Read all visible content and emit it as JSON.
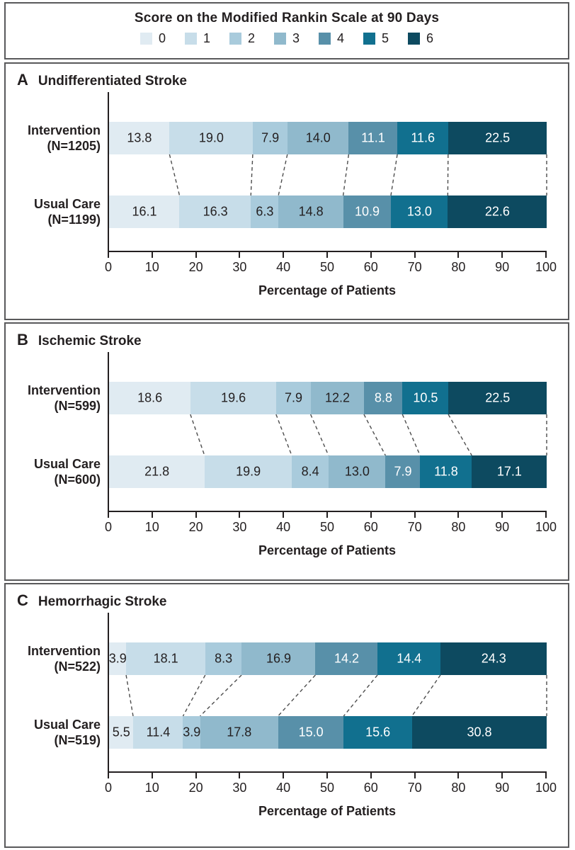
{
  "legend": {
    "title": "Score on the Modified Rankin Scale at 90 Days",
    "items": [
      {
        "label": "0",
        "color": "#e0ebf2"
      },
      {
        "label": "1",
        "color": "#c7dde9"
      },
      {
        "label": "2",
        "color": "#a9cbdc"
      },
      {
        "label": "3",
        "color": "#90b9cc"
      },
      {
        "label": "4",
        "color": "#5890a9"
      },
      {
        "label": "5",
        "color": "#11708f"
      },
      {
        "label": "6",
        "color": "#0d4a60"
      }
    ]
  },
  "chart_data": [
    {
      "type": "bar",
      "orientation": "horizontal-stacked",
      "panel_letter": "A",
      "title": "Undifferentiated Stroke",
      "xlabel": "Percentage of Patients",
      "xlim": [
        0,
        100
      ],
      "xticks": [
        0,
        10,
        20,
        30,
        40,
        50,
        60,
        70,
        80,
        90,
        100
      ],
      "categories": [
        "0",
        "1",
        "2",
        "3",
        "4",
        "5",
        "6"
      ],
      "series": [
        {
          "name": "Intervention",
          "n_label": "(N=1205)",
          "values": [
            13.8,
            19.0,
            7.9,
            14.0,
            11.1,
            11.6,
            22.5
          ]
        },
        {
          "name": "Usual Care",
          "n_label": "(N=1199)",
          "values": [
            16.1,
            16.3,
            6.3,
            14.8,
            10.9,
            13.0,
            22.6
          ]
        }
      ]
    },
    {
      "type": "bar",
      "orientation": "horizontal-stacked",
      "panel_letter": "B",
      "title": "Ischemic Stroke",
      "xlabel": "Percentage of Patients",
      "xlim": [
        0,
        100
      ],
      "xticks": [
        0,
        10,
        20,
        30,
        40,
        50,
        60,
        70,
        80,
        90,
        100
      ],
      "categories": [
        "0",
        "1",
        "2",
        "3",
        "4",
        "5",
        "6"
      ],
      "series": [
        {
          "name": "Intervention",
          "n_label": "(N=599)",
          "values": [
            18.6,
            19.6,
            7.9,
            12.2,
            8.8,
            10.5,
            22.5
          ]
        },
        {
          "name": "Usual Care",
          "n_label": "(N=600)",
          "values": [
            21.8,
            19.9,
            8.4,
            13.0,
            7.9,
            11.8,
            17.1
          ]
        }
      ]
    },
    {
      "type": "bar",
      "orientation": "horizontal-stacked",
      "panel_letter": "C",
      "title": "Hemorrhagic Stroke",
      "xlabel": "Percentage of Patients",
      "xlim": [
        0,
        100
      ],
      "xticks": [
        0,
        10,
        20,
        30,
        40,
        50,
        60,
        70,
        80,
        90,
        100
      ],
      "categories": [
        "0",
        "1",
        "2",
        "3",
        "4",
        "5",
        "6"
      ],
      "series": [
        {
          "name": "Intervention",
          "n_label": "(N=522)",
          "values": [
            3.9,
            18.1,
            8.3,
            16.9,
            14.2,
            14.4,
            24.3
          ]
        },
        {
          "name": "Usual Care",
          "n_label": "(N=519)",
          "values": [
            5.5,
            11.4,
            3.9,
            17.8,
            15.0,
            15.6,
            30.8
          ]
        }
      ]
    }
  ],
  "colors": {
    "scale": [
      "#e0ebf2",
      "#c7dde9",
      "#a9cbdc",
      "#90b9cc",
      "#5890a9",
      "#11708f",
      "#0d4a60"
    ],
    "dark_text": "#231f20",
    "light_text": "#ffffff",
    "box_border": "#59595b",
    "axis": "#231f20",
    "dash": "#4d4d4d"
  }
}
